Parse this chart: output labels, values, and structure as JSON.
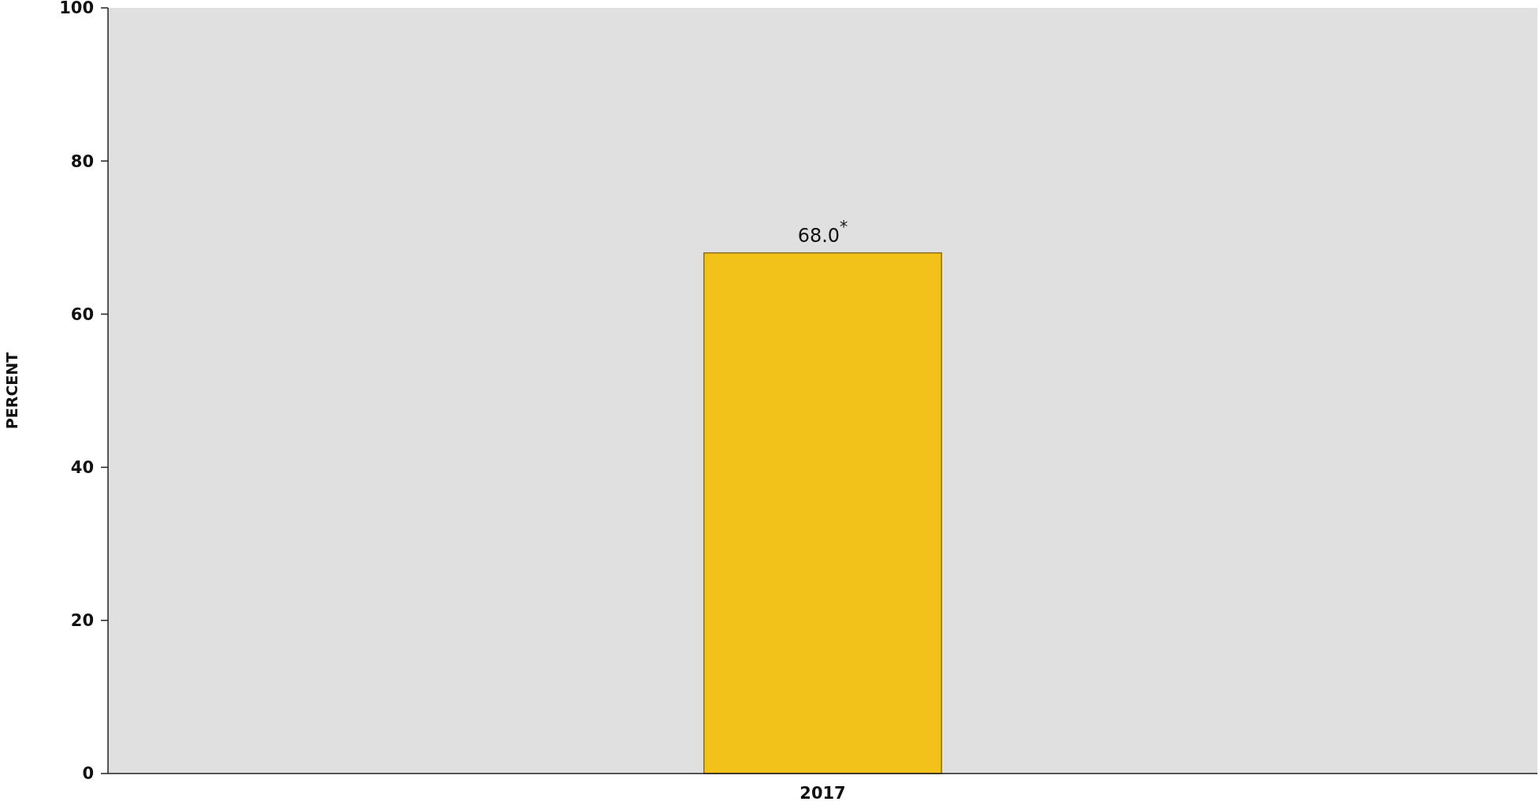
{
  "chart_data": {
    "type": "bar",
    "ylabel": "PERCENT",
    "categories": [
      "2017"
    ],
    "values": [
      68.0
    ],
    "value_labels": [
      "68.0$^{*}$"
    ],
    "color": "#f2c21b",
    "ylim": [
      0,
      100
    ],
    "yticks": [
      0,
      20,
      40,
      60,
      80,
      100
    ]
  }
}
